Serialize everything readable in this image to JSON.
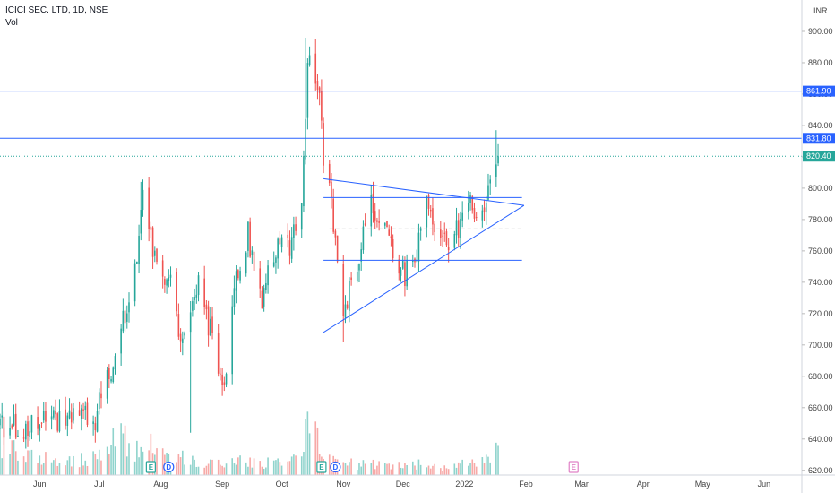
{
  "header": {
    "symbol_line": "ICICI SEC. LTD, 1D, NSE",
    "volume_label": "Vol"
  },
  "colors": {
    "up": "#26a69a",
    "down": "#ef5350",
    "vol_up": "#8fd3cc",
    "vol_down": "#f7a9a7",
    "line": "#2962ff",
    "last_price": "#26a69a",
    "dashed": "#9e9e9e",
    "earnings": "#26a69a",
    "dividend": "#2962ff",
    "future_earnings": "#e082c6"
  },
  "chart_data": {
    "type": "candlestick",
    "currency_label": "INR",
    "ylim": [
      617,
      920
    ],
    "y_ticks": [
      620,
      640,
      660,
      680,
      700,
      720,
      740,
      760,
      780,
      800,
      820,
      840,
      860,
      880,
      900
    ],
    "y_tick_labels": [
      "620.00",
      "640.00",
      "660.00",
      "680.00",
      "700.00",
      "720.00",
      "740.00",
      "760.00",
      "780.00",
      "800.00",
      "820.00",
      "840.00",
      "860.00",
      "880.00",
      "900.00"
    ],
    "x_ticks": [
      {
        "label": "Jun",
        "date": "2021-06-01"
      },
      {
        "label": "Jul",
        "date": "2021-07-01"
      },
      {
        "label": "Aug",
        "date": "2021-08-01"
      },
      {
        "label": "Sep",
        "date": "2021-09-01"
      },
      {
        "label": "Oct",
        "date": "2021-10-01"
      },
      {
        "label": "Nov",
        "date": "2021-11-01"
      },
      {
        "label": "Dec",
        "date": "2021-12-01"
      },
      {
        "label": "2022",
        "date": "2022-01-01"
      },
      {
        "label": "Feb",
        "date": "2022-02-01"
      },
      {
        "label": "Mar",
        "date": "2022-03-01"
      },
      {
        "label": "Apr",
        "date": "2022-04-01"
      },
      {
        "label": "May",
        "date": "2022-05-01"
      },
      {
        "label": "Jun",
        "date": "2022-06-01"
      }
    ],
    "x_range": [
      "2021-05-12",
      "2022-06-20"
    ],
    "data_end": "2022-01-18",
    "horizontal_lines": [
      {
        "value": 861.9,
        "label": "861.90",
        "style": "solid"
      },
      {
        "value": 831.8,
        "label": "831.80",
        "style": "solid"
      }
    ],
    "last_price": {
      "value": 820.4,
      "label": "820.40"
    },
    "trendlines": [
      {
        "from": {
          "date": "2021-10-22",
          "value": 806
        },
        "to": {
          "date": "2022-01-31",
          "value": 789
        }
      },
      {
        "from": {
          "date": "2021-10-22",
          "value": 708
        },
        "to": {
          "date": "2022-01-31",
          "value": 789
        }
      },
      {
        "from": {
          "date": "2021-10-22",
          "value": 794
        },
        "to": {
          "date": "2022-01-30",
          "value": 794
        }
      },
      {
        "from": {
          "date": "2021-10-22",
          "value": 754
        },
        "to": {
          "date": "2022-01-30",
          "value": 754
        }
      }
    ],
    "dashed_lines": [
      {
        "from": {
          "date": "2021-10-25",
          "value": 774
        },
        "to": {
          "date": "2022-01-30",
          "value": 774
        }
      }
    ],
    "event_markers": [
      {
        "type": "E",
        "date": "2021-07-27",
        "color": "earnings"
      },
      {
        "type": "D",
        "date": "2021-08-05",
        "color": "dividend"
      },
      {
        "type": "E",
        "date": "2021-10-21",
        "color": "earnings"
      },
      {
        "type": "D",
        "date": "2021-10-28",
        "color": "dividend"
      },
      {
        "type": "E",
        "date": "2022-02-25",
        "color": "future_earnings"
      }
    ],
    "anchors": [
      {
        "date": "2021-05-12",
        "value": 650,
        "vol": 0.45
      },
      {
        "date": "2021-05-25",
        "value": 648,
        "vol": 0.28
      },
      {
        "date": "2021-06-01",
        "value": 650,
        "vol": 0.22
      },
      {
        "date": "2021-06-15",
        "value": 652,
        "vol": 0.18
      },
      {
        "date": "2021-06-29",
        "value": 654,
        "vol": 0.22
      },
      {
        "date": "2021-07-06",
        "value": 680,
        "vol": 0.4
      },
      {
        "date": "2021-07-12",
        "value": 712,
        "vol": 0.5
      },
      {
        "date": "2021-07-19",
        "value": 745,
        "vol": 0.3
      },
      {
        "date": "2021-07-23",
        "value": 790,
        "vol": 0.45
      },
      {
        "date": "2021-07-30",
        "value": 748,
        "vol": 0.3
      },
      {
        "date": "2021-08-06",
        "value": 742,
        "vol": 0.2
      },
      {
        "date": "2021-08-12",
        "value": 700,
        "vol": 0.25
      },
      {
        "date": "2021-08-20",
        "value": 740,
        "vol": 0.15
      },
      {
        "date": "2021-08-27",
        "value": 703,
        "vol": 0.15
      },
      {
        "date": "2021-09-02",
        "value": 675,
        "vol": 0.12
      },
      {
        "date": "2021-09-07",
        "value": 740,
        "vol": 0.2
      },
      {
        "date": "2021-09-14",
        "value": 770,
        "vol": 0.18
      },
      {
        "date": "2021-09-21",
        "value": 728,
        "vol": 0.15
      },
      {
        "date": "2021-09-28",
        "value": 760,
        "vol": 0.2
      },
      {
        "date": "2021-10-05",
        "value": 765,
        "vol": 0.22
      },
      {
        "date": "2021-10-11",
        "value": 795,
        "vol": 0.35
      },
      {
        "date": "2021-10-14",
        "value": 880,
        "vol": 0.6
      },
      {
        "date": "2021-10-19",
        "value": 870,
        "vol": 0.5
      },
      {
        "date": "2021-10-22",
        "value": 818,
        "vol": 0.3
      },
      {
        "date": "2021-10-26",
        "value": 790,
        "vol": 0.25
      },
      {
        "date": "2021-11-01",
        "value": 720,
        "vol": 0.2
      },
      {
        "date": "2021-11-08",
        "value": 750,
        "vol": 0.12
      },
      {
        "date": "2021-11-15",
        "value": 790,
        "vol": 0.15
      },
      {
        "date": "2021-11-22",
        "value": 778,
        "vol": 0.12
      },
      {
        "date": "2021-11-29",
        "value": 745,
        "vol": 0.12
      },
      {
        "date": "2021-12-06",
        "value": 748,
        "vol": 0.15
      },
      {
        "date": "2021-12-13",
        "value": 790,
        "vol": 0.12
      },
      {
        "date": "2021-12-20",
        "value": 760,
        "vol": 0.1
      },
      {
        "date": "2021-12-27",
        "value": 772,
        "vol": 0.12
      },
      {
        "date": "2022-01-04",
        "value": 790,
        "vol": 0.15
      },
      {
        "date": "2022-01-10",
        "value": 778,
        "vol": 0.18
      },
      {
        "date": "2022-01-13",
        "value": 796,
        "vol": 0.2
      },
      {
        "date": "2022-01-17",
        "value": 816,
        "vol": 0.32
      },
      {
        "date": "2022-01-18",
        "value": 820.4,
        "vol": 0.3
      }
    ]
  }
}
